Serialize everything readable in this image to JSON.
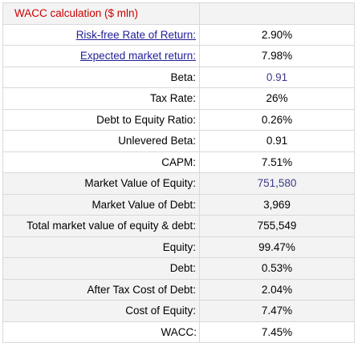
{
  "title": "WACC calculation ($ mln)",
  "colors": {
    "title_red": "#cc0000",
    "link_blue": "#1f1f99",
    "input_blue": "#3a3a8a",
    "highlight": "#f2c744",
    "shade": "#f3f3f3"
  },
  "rows": [
    {
      "label": "Risk-free Rate of Return:",
      "value": "2.90%"
    },
    {
      "label": "Expected market return:",
      "value": "7.98%"
    },
    {
      "label": "Beta:",
      "value": "0.91"
    },
    {
      "label": "Tax Rate:",
      "value": "26%"
    },
    {
      "label": "Debt to Equity Ratio:",
      "value": "0.26%"
    },
    {
      "label": "Unlevered Beta:",
      "value": "0.91"
    },
    {
      "label": "CAPM:",
      "value": "7.51%"
    },
    {
      "label": "Market Value of Equity:",
      "value": "751,580"
    },
    {
      "label": "Market Value of Debt:",
      "value": "3,969"
    },
    {
      "label": "Total market value of equity & debt:",
      "value": "755,549"
    },
    {
      "label": "Equity:",
      "value": "99.47%"
    },
    {
      "label": "Debt:",
      "value": "0.53%"
    },
    {
      "label": "After Tax Cost of Debt:",
      "value": "2.04%"
    },
    {
      "label": "Cost of Equity:",
      "value": "7.47%"
    }
  ],
  "wacc": {
    "label": "WACC:",
    "value": "7.45%"
  }
}
